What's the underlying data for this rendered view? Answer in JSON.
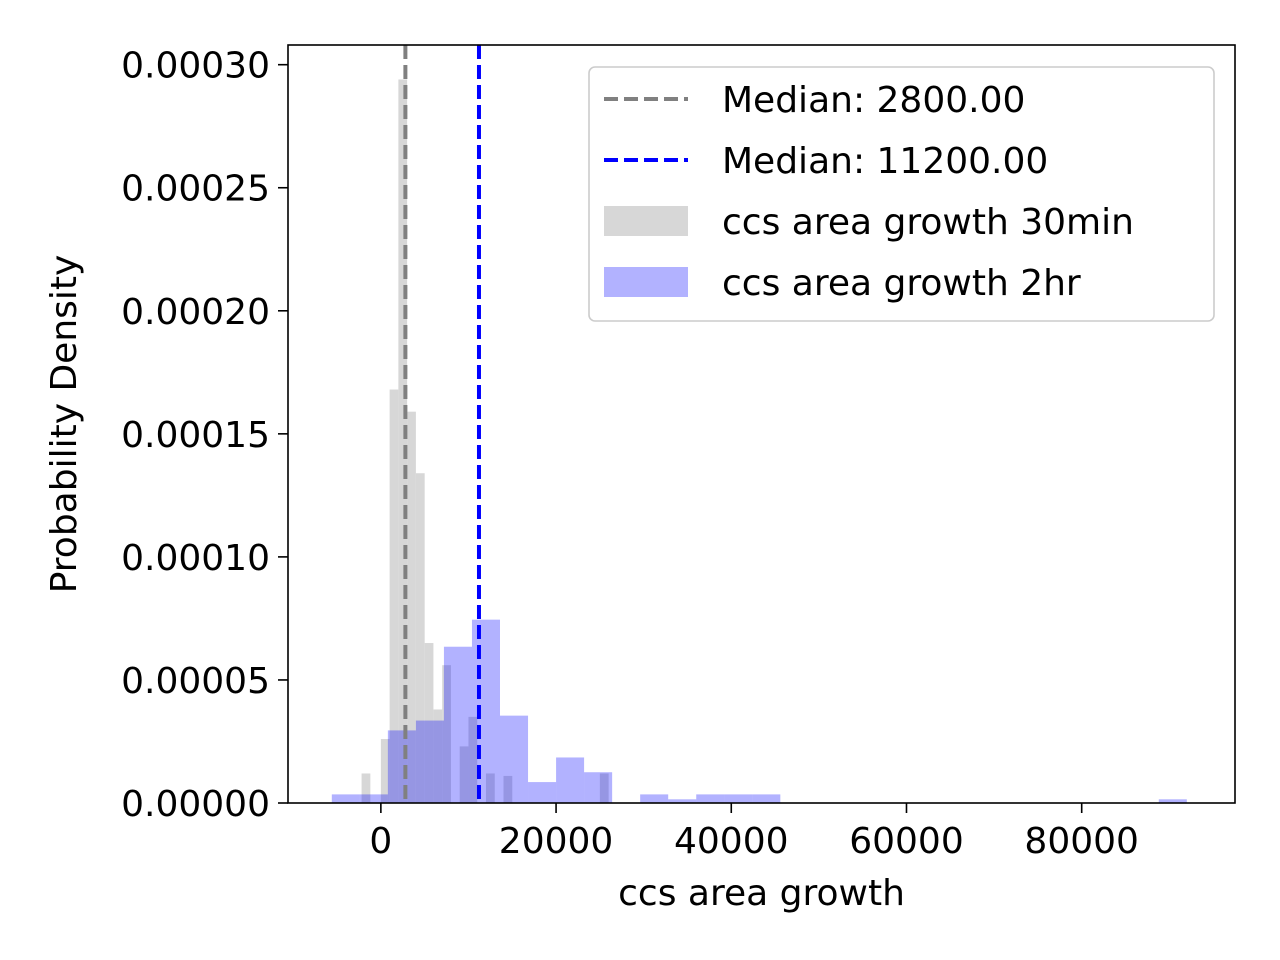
{
  "chart_data": {
    "type": "histogram",
    "xlabel": "ccs area growth",
    "ylabel": "Probability Density",
    "xlim": [
      -10600,
      97500
    ],
    "ylim": [
      0,
      0.000308
    ],
    "x_ticks": [
      {
        "value": 0,
        "label": "0"
      },
      {
        "value": 20000,
        "label": "20000"
      },
      {
        "value": 40000,
        "label": "40000"
      },
      {
        "value": 60000,
        "label": "60000"
      },
      {
        "value": 80000,
        "label": "80000"
      }
    ],
    "y_ticks": [
      {
        "value": 0,
        "label": "0.00000"
      },
      {
        "value": 5e-05,
        "label": "0.00005"
      },
      {
        "value": 0.0001,
        "label": "0.00010"
      },
      {
        "value": 0.00015,
        "label": "0.00015"
      },
      {
        "value": 0.0002,
        "label": "0.00020"
      },
      {
        "value": 0.00025,
        "label": "0.00025"
      },
      {
        "value": 0.0003,
        "label": "0.00030"
      }
    ],
    "legend_position": "top-right",
    "series": [
      {
        "name": "ccs area growth 30min",
        "kind": "histogram",
        "color": "#d3d3d3",
        "opacity": 0.9,
        "bins": [
          {
            "x0": -2200,
            "x1": -1200,
            "y": 1.2e-05
          },
          {
            "x0": 0,
            "x1": 1000,
            "y": 2.6e-05
          },
          {
            "x0": 1000,
            "x1": 2000,
            "y": 0.000168
          },
          {
            "x0": 2000,
            "x1": 3000,
            "y": 0.000294
          },
          {
            "x0": 3000,
            "x1": 4000,
            "y": 0.000159
          },
          {
            "x0": 4000,
            "x1": 5000,
            "y": 0.000134
          },
          {
            "x0": 5000,
            "x1": 6000,
            "y": 6.5e-05
          },
          {
            "x0": 6000,
            "x1": 7000,
            "y": 3.8e-05
          },
          {
            "x0": 7000,
            "x1": 8000,
            "y": 5.6e-05
          },
          {
            "x0": 9000,
            "x1": 10000,
            "y": 2.3e-05
          },
          {
            "x0": 10000,
            "x1": 11000,
            "y": 3.5e-05
          },
          {
            "x0": 12000,
            "x1": 13000,
            "y": 1.2e-05
          },
          {
            "x0": 14000,
            "x1": 15000,
            "y": 1.1e-05
          },
          {
            "x0": 25000,
            "x1": 26000,
            "y": 1.2e-05
          }
        ]
      },
      {
        "name": "ccs area growth 2hr",
        "kind": "histogram",
        "color": "#0000ff",
        "opacity": 0.3,
        "bins": [
          {
            "x0": -5600,
            "x1": -2400,
            "y": 3.5e-06
          },
          {
            "x0": -2400,
            "x1": 800,
            "y": 3.5e-06
          },
          {
            "x0": 800,
            "x1": 4000,
            "y": 2.95e-05
          },
          {
            "x0": 4000,
            "x1": 7200,
            "y": 3.35e-05
          },
          {
            "x0": 7200,
            "x1": 10400,
            "y": 6.35e-05
          },
          {
            "x0": 10400,
            "x1": 13600,
            "y": 7.45e-05
          },
          {
            "x0": 13600,
            "x1": 16800,
            "y": 3.55e-05
          },
          {
            "x0": 16800,
            "x1": 20000,
            "y": 8.5e-06
          },
          {
            "x0": 20000,
            "x1": 23200,
            "y": 1.85e-05
          },
          {
            "x0": 23200,
            "x1": 26400,
            "y": 1.25e-05
          },
          {
            "x0": 29600,
            "x1": 32800,
            "y": 3.5e-06
          },
          {
            "x0": 32800,
            "x1": 36000,
            "y": 1.5e-06
          },
          {
            "x0": 36000,
            "x1": 39200,
            "y": 3.5e-06
          },
          {
            "x0": 39200,
            "x1": 42400,
            "y": 3.5e-06
          },
          {
            "x0": 42400,
            "x1": 45600,
            "y": 3.5e-06
          },
          {
            "x0": 88800,
            "x1": 92000,
            "y": 1.5e-06
          }
        ]
      },
      {
        "name": "Median: 2800.00",
        "kind": "vline",
        "x": 2800,
        "color": "#808080",
        "style": "dashed"
      },
      {
        "name": "Median: 11200.00",
        "kind": "vline",
        "x": 11200,
        "color": "#0000ff",
        "style": "dashed"
      }
    ],
    "legend": [
      {
        "label": "Median: 2800.00",
        "kind": "line",
        "color": "#808080"
      },
      {
        "label": "Median: 11200.00",
        "kind": "line",
        "color": "#0000ff"
      },
      {
        "label": "ccs area growth 30min",
        "kind": "patch",
        "color": "#d3d3d3",
        "opacity": 0.9
      },
      {
        "label": "ccs area growth 2hr",
        "kind": "patch",
        "color": "#0000ff",
        "opacity": 0.3
      }
    ]
  }
}
